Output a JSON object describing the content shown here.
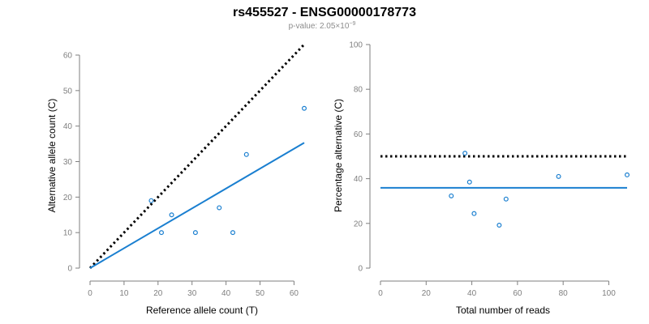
{
  "header": {
    "title": "rs455527 - ENSG00000178773",
    "pvalue_prefix": "p-value: 2.05×10",
    "pvalue_exponent": "−9"
  },
  "colors": {
    "points": "#1a7fd0",
    "fit_line": "#1a7fd0",
    "reference_line": "#000000",
    "axis": "#7f7f7f"
  },
  "chart_data": [
    {
      "type": "scatter",
      "xlabel": "Reference allele count (T)",
      "ylabel": "Alternative allele count (C)",
      "xlim": [
        0,
        63
      ],
      "ylim": [
        0,
        60
      ],
      "xticks": [
        0,
        10,
        20,
        30,
        40,
        50,
        60
      ],
      "yticks": [
        0,
        10,
        20,
        30,
        40,
        50,
        60
      ],
      "points": [
        {
          "x": 18,
          "y": 19
        },
        {
          "x": 21,
          "y": 10
        },
        {
          "x": 24,
          "y": 15
        },
        {
          "x": 31,
          "y": 10
        },
        {
          "x": 38,
          "y": 17
        },
        {
          "x": 42,
          "y": 10
        },
        {
          "x": 46,
          "y": 32
        },
        {
          "x": 63,
          "y": 45
        }
      ],
      "fit_line": {
        "style": "solid",
        "x": [
          0,
          63
        ],
        "y": [
          0,
          35.3
        ]
      },
      "reference_line": {
        "style": "dotted",
        "x": [
          0,
          63
        ],
        "y": [
          0,
          63
        ]
      },
      "grid": false
    },
    {
      "type": "scatter",
      "xlabel": "Total number of reads",
      "ylabel": "Percentage alternative (C)",
      "xlim": [
        0,
        108
      ],
      "ylim": [
        0,
        100
      ],
      "xticks": [
        0,
        20,
        40,
        60,
        80,
        100
      ],
      "yticks": [
        0,
        20,
        40,
        60,
        80,
        100
      ],
      "points": [
        {
          "x": 31,
          "y": 32.3
        },
        {
          "x": 37,
          "y": 51.4
        },
        {
          "x": 39,
          "y": 38.5
        },
        {
          "x": 41,
          "y": 24.4
        },
        {
          "x": 52,
          "y": 19.2
        },
        {
          "x": 55,
          "y": 30.9
        },
        {
          "x": 78,
          "y": 41.0
        },
        {
          "x": 108,
          "y": 41.7
        }
      ],
      "fit_line": {
        "style": "solid",
        "x": [
          0,
          108
        ],
        "y": [
          35.9,
          35.9
        ]
      },
      "reference_line": {
        "style": "dotted",
        "x": [
          0,
          108
        ],
        "y": [
          50,
          50
        ]
      },
      "grid": false
    }
  ]
}
